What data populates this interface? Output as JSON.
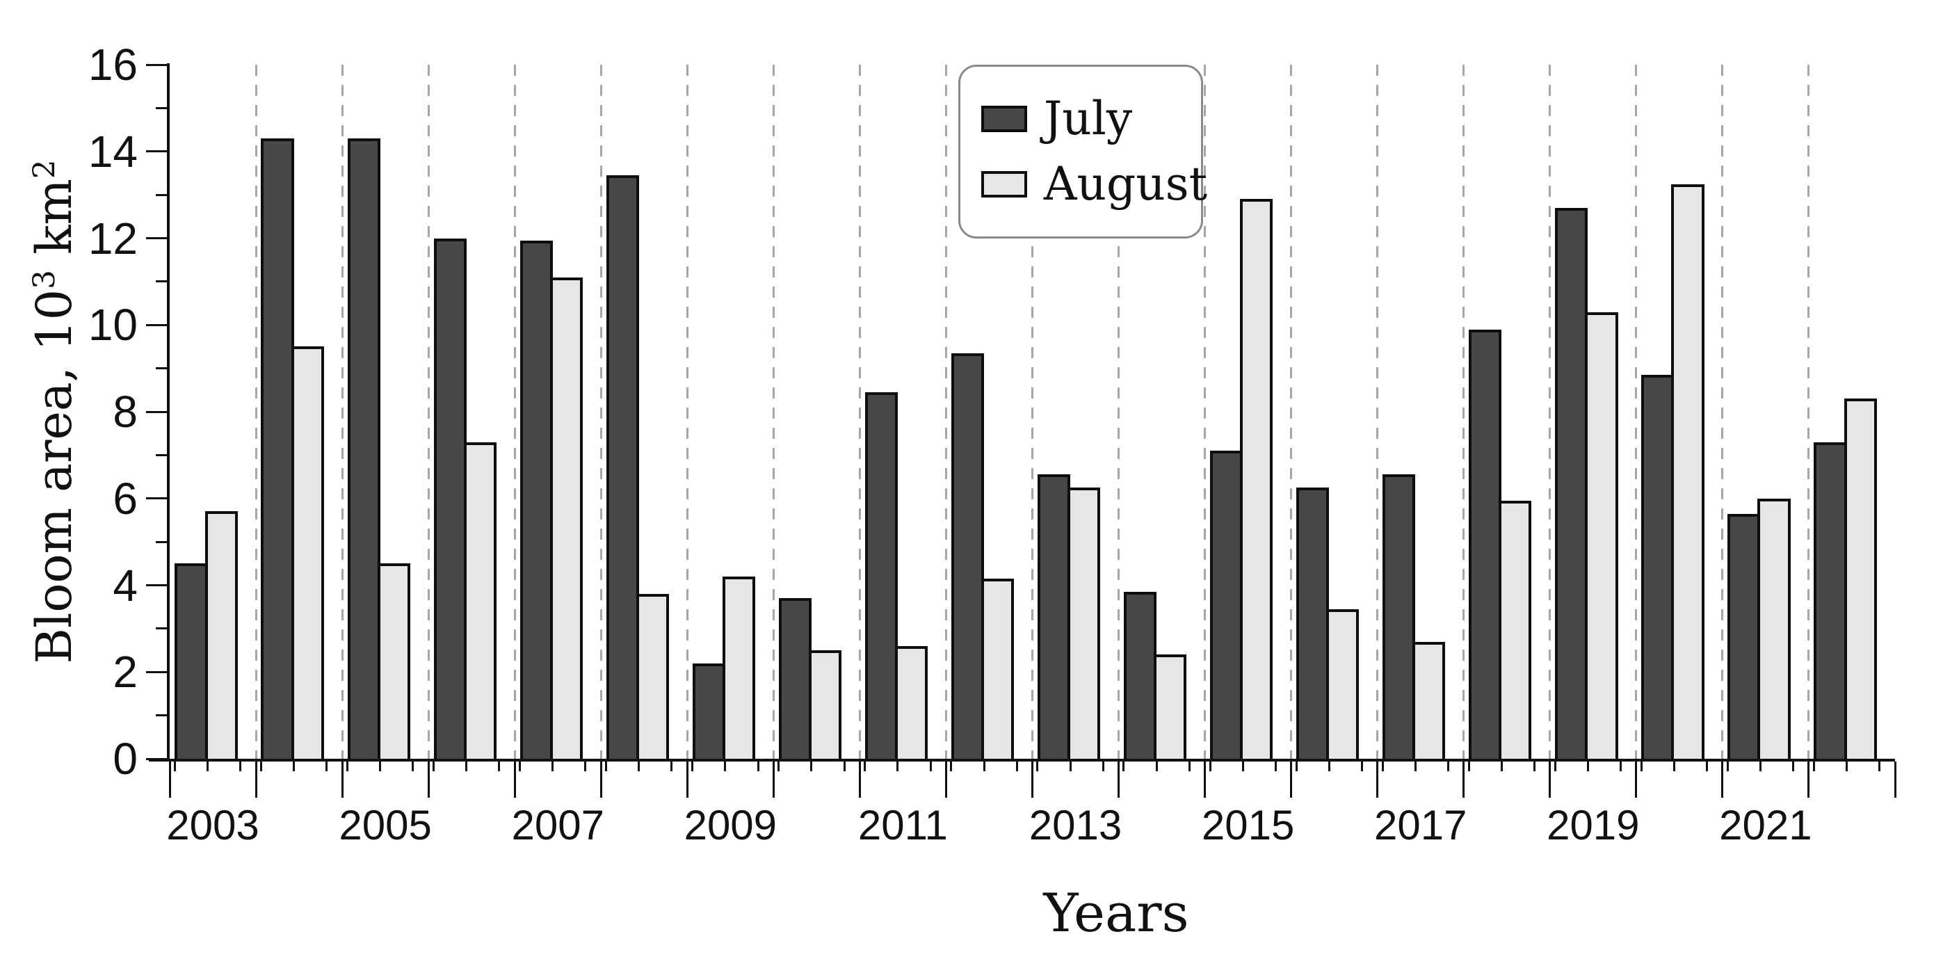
{
  "chart_data": {
    "type": "bar",
    "title": "",
    "xlabel": "Years",
    "ylabel": "Bloom area, 10³ km²",
    "ylabel_parts": {
      "prefix": "Bloom area, 10",
      "exp1": "3",
      "mid": " km",
      "exp2": "2"
    },
    "ylim": [
      0,
      16
    ],
    "y_major_tick_step": 2,
    "y_minor_tick_step": 1,
    "y_tick_labels": [
      "0",
      "2",
      "4",
      "6",
      "8",
      "10",
      "12",
      "14",
      "16"
    ],
    "categories": [
      2003,
      2004,
      2005,
      2006,
      2007,
      2008,
      2009,
      2010,
      2011,
      2012,
      2013,
      2014,
      2015,
      2016,
      2017,
      2018,
      2019,
      2020,
      2021,
      2022
    ],
    "x_axis_labels": [
      "2003",
      "2005",
      "2007",
      "2009",
      "2011",
      "2013",
      "2015",
      "2017",
      "2019",
      "2021"
    ],
    "series": [
      {
        "name": "July",
        "color": "#474747",
        "values": [
          4.5,
          14.3,
          14.3,
          12.0,
          11.95,
          13.45,
          2.2,
          3.7,
          8.45,
          9.35,
          6.55,
          3.85,
          7.1,
          6.25,
          6.55,
          9.9,
          12.7,
          8.85,
          5.65,
          7.3
        ]
      },
      {
        "name": "August",
        "color": "#e6e6e6",
        "values": [
          5.7,
          9.5,
          4.5,
          7.3,
          11.1,
          3.8,
          4.2,
          2.5,
          2.6,
          4.15,
          6.25,
          2.4,
          12.9,
          3.45,
          2.7,
          5.95,
          10.3,
          13.25,
          6.0,
          8.3
        ]
      }
    ],
    "legend": {
      "position": "top-center"
    },
    "grid": {
      "vertical_dashed_at_year_boundaries": true,
      "color": "#a6a6a6"
    },
    "axis_color": "#111111",
    "bar_outline_color": "#0e0e0e",
    "background": "#ffffff"
  }
}
